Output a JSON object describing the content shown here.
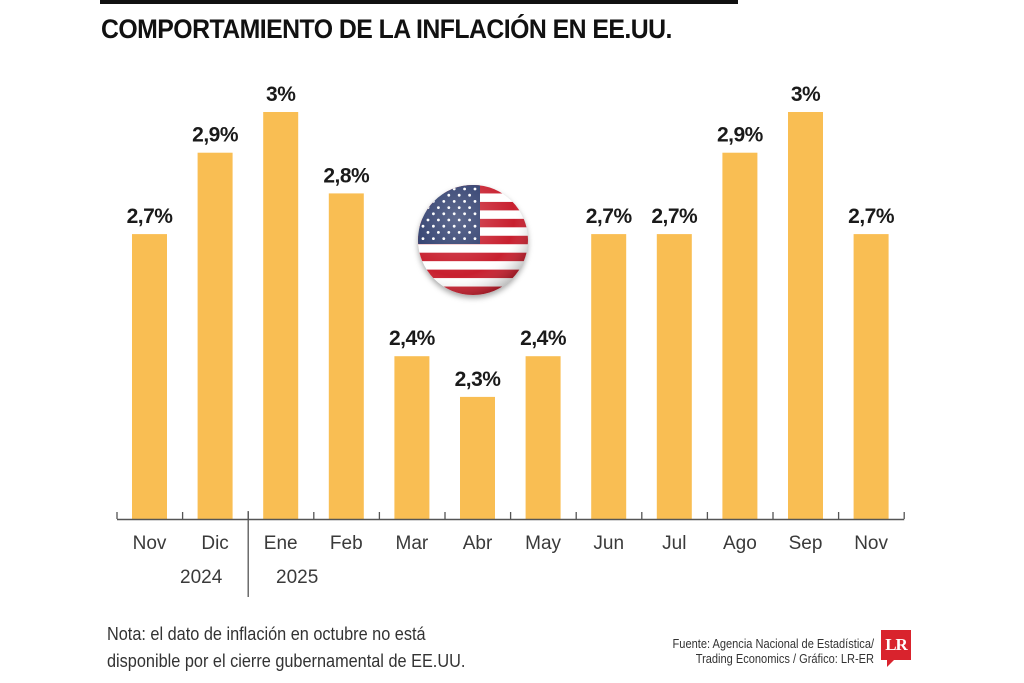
{
  "header": {
    "title": "COMPORTAMIENTO DE LA INFLACIÓN EN EE.UU."
  },
  "colors": {
    "bar": "#F9BE53",
    "axis": "#555555",
    "title": "#111111",
    "logo_red": "#D9232D"
  },
  "icons": {
    "flag": "us-flag-icon",
    "logo": "lr-logo-icon"
  },
  "chart_data": {
    "type": "bar",
    "title": "COMPORTAMIENTO DE LA INFLACIÓN EN EE.UU.",
    "xlabel": "",
    "ylabel": "",
    "categories": [
      "Nov",
      "Dic",
      "Ene",
      "Feb",
      "Mar",
      "Abr",
      "May",
      "Jun",
      "Jul",
      "Ago",
      "Sep",
      "Nov"
    ],
    "values": [
      2.7,
      2.9,
      3.0,
      2.8,
      2.4,
      2.3,
      2.4,
      2.7,
      2.7,
      2.9,
      3.0,
      2.7
    ],
    "value_labels": [
      "2,7%",
      "2,9%",
      "3%",
      "2,8%",
      "2,4%",
      "2,3%",
      "2,4%",
      "2,7%",
      "2,7%",
      "2,9%",
      "3%",
      "2,7%"
    ],
    "year_groups": [
      {
        "label": "2024",
        "categories": [
          "Nov",
          "Dic"
        ]
      },
      {
        "label": "2025",
        "categories": [
          "Ene",
          "Feb",
          "Mar",
          "Abr",
          "May",
          "Jun",
          "Jul",
          "Ago",
          "Sep",
          "Nov"
        ]
      }
    ],
    "ylim": [
      2.0,
      3.0
    ],
    "grid": false,
    "legend": "none",
    "unit": "%"
  },
  "footer": {
    "note_line1": "Nota: el dato de inflación en octubre no está",
    "note_line2": "disponible por el cierre gubernamental de EE.UU.",
    "source_line1": "Fuente: Agencia Nacional de Estadística/",
    "source_line2": "Trading Economics / Gráfico: LR-ER",
    "logo_text": "LR"
  }
}
